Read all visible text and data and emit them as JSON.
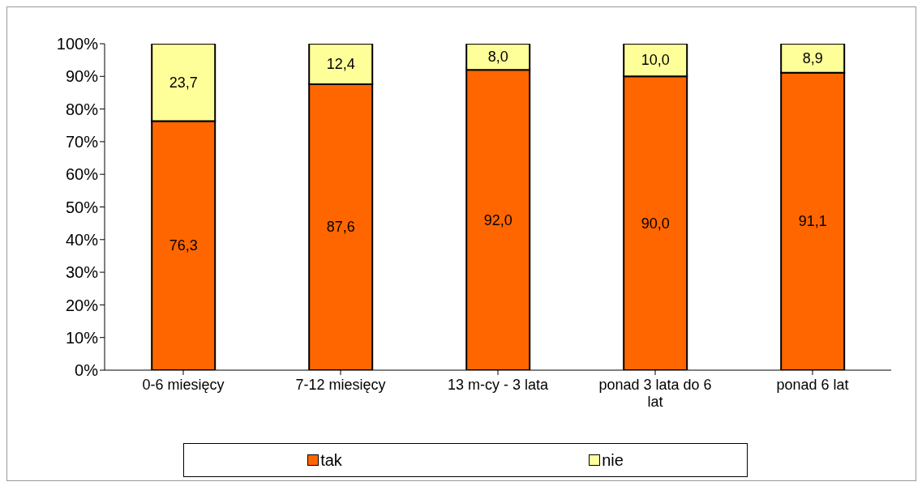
{
  "chart_data": {
    "type": "bar",
    "stacked": true,
    "categories": [
      "0-6 miesięcy",
      "7-12 miesięcy",
      "13 m-cy - 3 lata",
      "ponad 3 lata do 6 lat",
      "ponad 6 lat"
    ],
    "series": [
      {
        "name": "tak",
        "color": "#ff6600",
        "values": [
          76.3,
          87.6,
          92.0,
          90.0,
          91.1
        ],
        "value_labels": [
          "76,3",
          "87,6",
          "92,0",
          "90,0",
          "91,1"
        ]
      },
      {
        "name": "nie",
        "color": "#ffff99",
        "values": [
          23.7,
          12.4,
          8.0,
          10.0,
          8.9
        ],
        "value_labels": [
          "23,7",
          "12,4",
          "8,0",
          "10,0",
          "8,9"
        ]
      }
    ],
    "ylim": [
      0,
      100
    ],
    "yticks": [
      {
        "value": 0,
        "label": "0%"
      },
      {
        "value": 10,
        "label": "10%"
      },
      {
        "value": 20,
        "label": "20%"
      },
      {
        "value": 30,
        "label": "30%"
      },
      {
        "value": 40,
        "label": "40%"
      },
      {
        "value": 50,
        "label": "50%"
      },
      {
        "value": 60,
        "label": "60%"
      },
      {
        "value": 70,
        "label": "70%"
      },
      {
        "value": 80,
        "label": "80%"
      },
      {
        "value": 90,
        "label": "90%"
      },
      {
        "value": 100,
        "label": "100%"
      }
    ],
    "grid": false,
    "legend": "bottom"
  }
}
